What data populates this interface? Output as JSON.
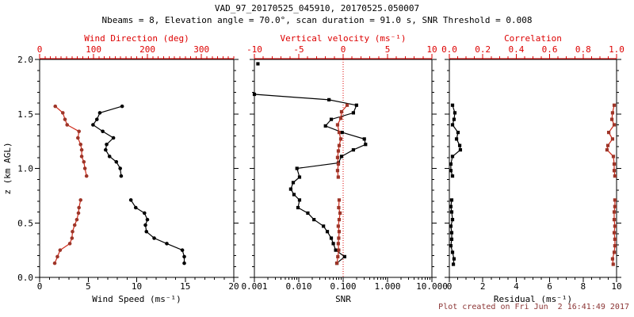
{
  "header": {
    "title": "VAD_97_20170525_045910, 20170525.050007",
    "subtitle": "Nbeams = 8, Elevation angle = 70.0°, scan duration = 91.0 s, SNR Threshold = 0.008"
  },
  "footer": {
    "text": "Plot created on Fri Jun  2 16:41:49 2017"
  },
  "colors": {
    "black": "#000000",
    "red_axis": "#dd0000",
    "red_line": "#cf2a1a",
    "red_marker": "#9e3528",
    "footer_text": "#8b3434",
    "background": "#ffffff"
  },
  "chart_data": {
    "type": "line",
    "description": "VAD lidar vertical profiles: 3 panels sharing height axis",
    "y_axis": {
      "label": "z (km AGL)",
      "min": 0,
      "max": 2,
      "major_ticks": [
        0,
        0.5,
        1.0,
        1.5,
        2.0
      ],
      "tick_labels": [
        "0.0",
        "0.5",
        "1.0",
        "1.5",
        "2.0"
      ],
      "minor_step": 0.1
    },
    "panels": [
      {
        "name": "wind",
        "marker": "circle",
        "bottom_axis": {
          "label": "Wind Speed (ms⁻¹)",
          "scale": "linear",
          "min": 0,
          "max": 20,
          "majors": [
            0,
            5,
            10,
            15,
            20
          ],
          "labels": [
            "0",
            "5",
            "10",
            "15",
            "20"
          ],
          "minor_step": 1
        },
        "top_axis": {
          "label": "Wind Direction (deg)",
          "scale": "linear",
          "min": 0,
          "max": 360,
          "majors": [
            0,
            100,
            200,
            300
          ],
          "labels": [
            "0",
            "100",
            "200",
            "300"
          ],
          "minor_step": 10
        },
        "black_series": {
          "name": "wind_speed",
          "segments": [
            {
              "z": [
                0.13,
                0.19,
                0.25,
                0.31,
                0.36,
                0.42,
                0.48,
                0.53,
                0.59,
                0.64,
                0.71
              ],
              "v": [
                14.9,
                14.9,
                14.7,
                13.1,
                11.8,
                11.0,
                10.9,
                11.1,
                10.8,
                9.9,
                9.4
              ]
            },
            {
              "z": [
                0.93,
                1.0,
                1.06,
                1.11,
                1.17,
                1.22,
                1.28,
                1.34,
                1.4,
                1.45,
                1.51,
                1.57
              ],
              "v": [
                8.4,
                8.3,
                7.9,
                7.2,
                6.8,
                6.9,
                7.6,
                6.5,
                5.5,
                5.9,
                6.2,
                8.5
              ]
            }
          ]
        },
        "red_series": {
          "name": "wind_direction",
          "segments": [
            {
              "z": [
                0.13,
                0.19,
                0.25,
                0.31,
                0.36,
                0.42,
                0.48,
                0.53,
                0.59,
                0.64,
                0.71
              ],
              "v": [
                28,
                33,
                38,
                56,
                60,
                61,
                65,
                69,
                72,
                73,
                76
              ]
            },
            {
              "z": [
                0.93,
                1.0,
                1.06,
                1.11,
                1.17,
                1.22,
                1.28,
                1.34,
                1.4,
                1.45,
                1.51,
                1.57
              ],
              "v": [
                87,
                84,
                82,
                78,
                78,
                76,
                71,
                73,
                51,
                47,
                43,
                29
              ]
            }
          ]
        }
      },
      {
        "name": "snr",
        "marker": "square",
        "zero_line_at": 0,
        "bottom_axis": {
          "label": "SNR",
          "scale": "log",
          "min": 0.001,
          "max": 10,
          "majors": [
            0.001,
            0.01,
            0.1,
            1,
            10
          ],
          "labels": [
            "0.001",
            "0.010",
            "0.100",
            "1.000",
            "10.000"
          ]
        },
        "top_axis": {
          "label": "Vertical velocity (ms⁻¹)",
          "scale": "linear",
          "min": -10,
          "max": 10,
          "majors": [
            -10,
            -5,
            0,
            5,
            10
          ],
          "labels": [
            "-10",
            "-5",
            "0",
            "5",
            "10"
          ],
          "minor_step": 1
        },
        "black_series": {
          "name": "snr",
          "segments": [
            {
              "z": [
                0.13,
                0.19,
                0.25,
                0.31,
                0.36,
                0.42,
                0.47,
                0.53,
                0.59,
                0.64,
                0.71,
                0.76,
                0.81,
                0.87,
                0.92,
                1.0,
                1.05,
                1.11,
                1.17,
                1.22,
                1.27,
                1.33,
                1.39,
                1.45,
                1.51,
                1.58,
                1.63,
                1.68
              ],
              "v": [
                0.072,
                0.108,
                0.068,
                0.06,
                0.054,
                0.044,
                0.036,
                0.022,
                0.016,
                0.0096,
                0.0104,
                0.0078,
                0.0066,
                0.0075,
                0.0104,
                0.0091,
                0.078,
                0.092,
                0.17,
                0.32,
                0.3,
                0.095,
                0.04,
                0.054,
                0.17,
                0.2,
                0.048,
                0.001
              ]
            },
            {
              "z": [
                1.96
              ],
              "v": [
                0.0012
              ]
            }
          ]
        },
        "red_series": {
          "name": "vertical_velocity",
          "segments": [
            {
              "z": [
                0.13,
                0.19,
                0.25,
                0.31,
                0.36,
                0.42,
                0.47,
                0.53,
                0.59,
                0.64,
                0.71
              ],
              "v": [
                -0.7,
                -0.6,
                -0.5,
                -0.55,
                -0.5,
                -0.45,
                -0.55,
                -0.45,
                -0.35,
                -0.5,
                -0.45
              ]
            },
            {
              "z": [
                0.92,
                0.98,
                1.04,
                1.1,
                1.16,
                1.21,
                1.27,
                1.33,
                1.4,
                1.46,
                1.52,
                1.58
              ],
              "v": [
                -0.55,
                -0.63,
                -0.54,
                -0.63,
                -0.54,
                -0.45,
                -0.27,
                -0.45,
                -0.63,
                -0.27,
                -0.18,
                0.45
              ]
            }
          ]
        }
      },
      {
        "name": "residual",
        "marker": "square",
        "bottom_axis": {
          "label": "Residual (ms⁻¹)",
          "scale": "linear",
          "min": 0,
          "max": 10,
          "majors": [
            0,
            2,
            4,
            6,
            8,
            10
          ],
          "labels": [
            "0",
            "2",
            "4",
            "6",
            "8",
            "10"
          ],
          "minor_step": 0.5
        },
        "top_axis": {
          "label": "Correlation",
          "scale": "linear",
          "min": 0,
          "max": 1,
          "majors": [
            0,
            0.2,
            0.4,
            0.6,
            0.8,
            1.0
          ],
          "labels": [
            "0.0",
            "0.2",
            "0.4",
            "0.6",
            "0.8",
            "1.0"
          ],
          "minor_step": 0.05
        },
        "black_series": {
          "name": "residual",
          "segments": [
            {
              "z": [
                0.12,
                0.17,
                0.23,
                0.29,
                0.35,
                0.41,
                0.47,
                0.53,
                0.6,
                0.65,
                0.71
              ],
              "v": [
                0.24,
                0.28,
                0.19,
                0.09,
                0.14,
                0.14,
                0.09,
                0.19,
                0.14,
                0.09,
                0.14
              ]
            },
            {
              "z": [
                0.93,
                0.98,
                1.04,
                1.11,
                1.17,
                1.21,
                1.27,
                1.33,
                1.4,
                1.45,
                1.51,
                1.58
              ],
              "v": [
                0.19,
                0.09,
                0.09,
                0.19,
                0.66,
                0.62,
                0.43,
                0.52,
                0.19,
                0.28,
                0.33,
                0.19
              ]
            }
          ]
        },
        "red_series": {
          "name": "correlation",
          "segments": [
            {
              "z": [
                0.12,
                0.17,
                0.23,
                0.29,
                0.35,
                0.41,
                0.47,
                0.53,
                0.6,
                0.65,
                0.71
              ],
              "v": [
                0.98,
                0.976,
                0.986,
                0.99,
                0.99,
                0.986,
                0.99,
                0.986,
                0.986,
                0.99,
                0.99
              ]
            },
            {
              "z": [
                0.93,
                0.98,
                1.04,
                1.11,
                1.17,
                1.21,
                1.27,
                1.33,
                1.4,
                1.45,
                1.51,
                1.58
              ],
              "v": [
                0.99,
                0.986,
                0.986,
                0.981,
                0.943,
                0.948,
                0.976,
                0.953,
                0.986,
                0.972,
                0.976,
                0.986
              ]
            }
          ]
        }
      }
    ]
  }
}
